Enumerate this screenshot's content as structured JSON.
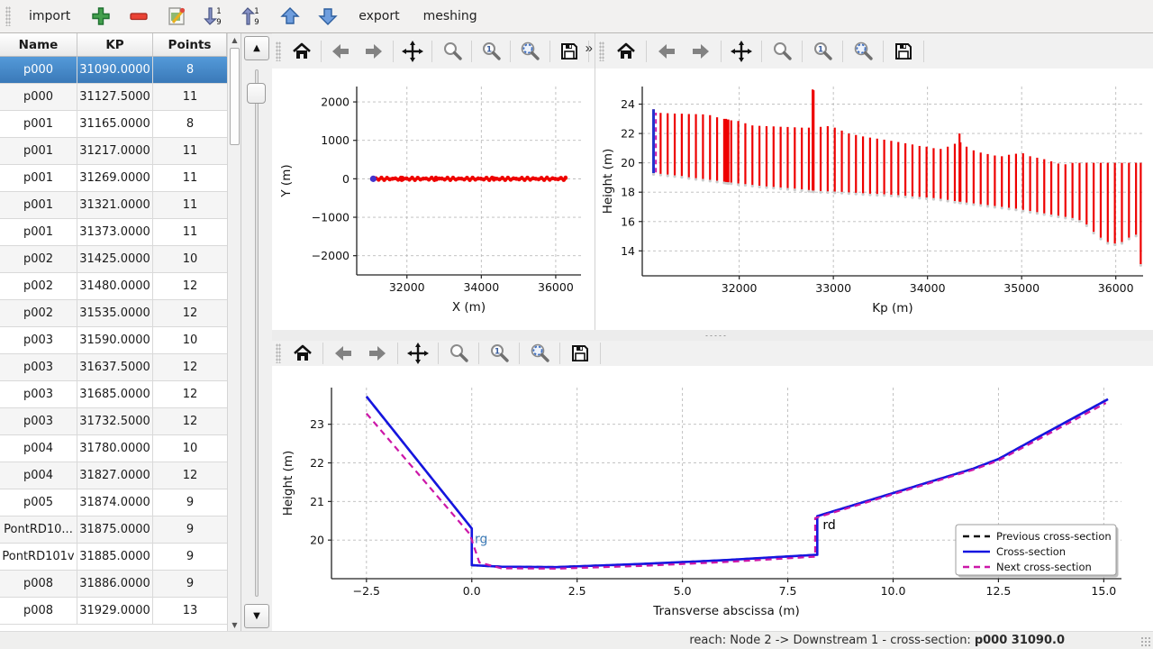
{
  "top_toolbar": {
    "items": [
      {
        "kind": "text",
        "name": "import-button",
        "label": "import"
      },
      {
        "kind": "icon",
        "name": "add-button",
        "icon": "add"
      },
      {
        "kind": "icon",
        "name": "remove-button",
        "icon": "remove"
      },
      {
        "kind": "icon",
        "name": "edit-button",
        "icon": "edit"
      },
      {
        "kind": "icon",
        "name": "sort-descending-button",
        "icon": "sort-desc"
      },
      {
        "kind": "icon",
        "name": "sort-ascending-button",
        "icon": "sort-asc"
      },
      {
        "kind": "icon",
        "name": "move-up-button",
        "icon": "up"
      },
      {
        "kind": "icon",
        "name": "move-down-button",
        "icon": "down"
      },
      {
        "kind": "text",
        "name": "export-button",
        "label": "export"
      },
      {
        "kind": "text",
        "name": "meshing-button",
        "label": "meshing"
      }
    ]
  },
  "table": {
    "columns": [
      "Name",
      "KP",
      "Points"
    ],
    "selected_index": 0,
    "rows": [
      [
        "p000",
        "31090.0000",
        "8"
      ],
      [
        "p000",
        "31127.5000",
        "11"
      ],
      [
        "p001",
        "31165.0000",
        "8"
      ],
      [
        "p001",
        "31217.0000",
        "11"
      ],
      [
        "p001",
        "31269.0000",
        "11"
      ],
      [
        "p001",
        "31321.0000",
        "11"
      ],
      [
        "p001",
        "31373.0000",
        "11"
      ],
      [
        "p002",
        "31425.0000",
        "10"
      ],
      [
        "p002",
        "31480.0000",
        "12"
      ],
      [
        "p002",
        "31535.0000",
        "12"
      ],
      [
        "p003",
        "31590.0000",
        "10"
      ],
      [
        "p003",
        "31637.5000",
        "12"
      ],
      [
        "p003",
        "31685.0000",
        "12"
      ],
      [
        "p003",
        "31732.5000",
        "12"
      ],
      [
        "p004",
        "31780.0000",
        "10"
      ],
      [
        "p004",
        "31827.0000",
        "12"
      ],
      [
        "p005",
        "31874.0000",
        "9"
      ],
      [
        "PontRD10...",
        "31875.0000",
        "9"
      ],
      [
        "PontRD101v",
        "31885.0000",
        "9"
      ],
      [
        "p008",
        "31886.0000",
        "9"
      ],
      [
        "p008",
        "31929.0000",
        "13"
      ]
    ]
  },
  "plot_toolbar": {
    "icons": [
      "home",
      "back",
      "forward",
      "pan",
      "zoom",
      "zoom-one",
      "zoom-fit",
      "save"
    ],
    "overflow_label": "»"
  },
  "status_bar": {
    "prefix": "reach: Node 2 -> Downstream 1 - cross-section:",
    "current": "p000 31090.0"
  },
  "colors": {
    "bars_red": "#ee0000",
    "cross_section_blue": "#1515e0",
    "next_magenta": "#cc17a8",
    "previous_black": "#111111",
    "reach_orange": "#ff7f0e",
    "selected_point_blue": "#4433cc",
    "grid_gray": "#bbbbbb"
  },
  "chart_data": [
    {
      "type": "scatter",
      "xlabel": "X (m)",
      "ylabel": "Y (m)",
      "xlim": [
        30650,
        36680
      ],
      "ylim": [
        -2500,
        2400
      ],
      "xticks": [
        32000,
        34000,
        36000
      ],
      "yticks": [
        -2000,
        -1000,
        0,
        1000,
        2000
      ],
      "x_decimals": 0,
      "y_decimals": 0,
      "grid": true,
      "series": [
        {
          "name": "reach-axis",
          "type": "line",
          "color": "#ff7f0e",
          "width": 3,
          "points": [
            [
              31100,
              0
            ],
            [
              36300,
              0
            ]
          ]
        },
        {
          "name": "cross-section-points",
          "type": "markers-from-bars",
          "color": "#ee0000",
          "r": 2.3,
          "jitter": 30
        },
        {
          "name": "selected-cross-section-point",
          "type": "markers",
          "color": "#4433cc",
          "r": 3.6,
          "points": [
            [
              31095,
              0
            ]
          ]
        }
      ]
    },
    {
      "type": "bar-range",
      "xlabel": "Kp (m)",
      "ylabel": "Height (m)",
      "xlim": [
        30970,
        36290
      ],
      "ylim": [
        12.3,
        25.2
      ],
      "xticks": [
        32000,
        33000,
        34000,
        35000,
        36000
      ],
      "yticks": [
        14,
        16,
        18,
        20,
        22,
        24
      ],
      "x_decimals": 0,
      "y_decimals": 0,
      "grid": true,
      "bar_color": "#ee0000",
      "bars": [
        [
          31090,
          19.3,
          23.65
        ],
        [
          31165,
          19.25,
          23.4
        ],
        [
          31240,
          19.2,
          23.38
        ],
        [
          31315,
          19.15,
          23.36
        ],
        [
          31390,
          19.1,
          23.35
        ],
        [
          31465,
          19.02,
          23.33
        ],
        [
          31540,
          18.96,
          23.32
        ],
        [
          31615,
          18.9,
          23.3
        ],
        [
          31690,
          18.84,
          23.25
        ],
        [
          31765,
          18.78,
          23.1
        ],
        [
          31840,
          18.72,
          23.0
        ],
        [
          31860,
          18.7,
          23.0
        ],
        [
          31875,
          18.69,
          22.95
        ],
        [
          31885,
          18.68,
          22.95
        ],
        [
          31915,
          18.66,
          22.9
        ],
        [
          31990,
          18.6,
          22.85
        ],
        [
          32065,
          18.55,
          22.7
        ],
        [
          32140,
          18.5,
          22.55
        ],
        [
          32215,
          18.44,
          22.52
        ],
        [
          32290,
          18.4,
          22.5
        ],
        [
          32365,
          18.36,
          22.48
        ],
        [
          32440,
          18.32,
          22.46
        ],
        [
          32515,
          18.28,
          22.44
        ],
        [
          32590,
          18.24,
          22.42
        ],
        [
          32665,
          18.2,
          22.4
        ],
        [
          32740,
          18.15,
          22.4
        ],
        [
          32780,
          18.12,
          25.0
        ],
        [
          32790,
          18.11,
          24.95
        ],
        [
          32865,
          18.08,
          22.45
        ],
        [
          32940,
          18.06,
          22.5
        ],
        [
          33015,
          18.04,
          22.4
        ],
        [
          33090,
          18.02,
          22.2
        ],
        [
          33165,
          17.99,
          22.0
        ],
        [
          33240,
          17.96,
          21.9
        ],
        [
          33315,
          17.93,
          21.8
        ],
        [
          33390,
          17.9,
          21.72
        ],
        [
          33465,
          17.88,
          21.65
        ],
        [
          33540,
          17.86,
          21.58
        ],
        [
          33615,
          17.83,
          21.5
        ],
        [
          33690,
          17.8,
          21.42
        ],
        [
          33765,
          17.76,
          21.33
        ],
        [
          33840,
          17.72,
          21.25
        ],
        [
          33915,
          17.68,
          21.15
        ],
        [
          33990,
          17.64,
          21.1
        ],
        [
          34065,
          17.6,
          21.0
        ],
        [
          34140,
          17.55,
          20.95
        ],
        [
          34215,
          17.48,
          21.1
        ],
        [
          34290,
          17.4,
          21.3
        ],
        [
          34340,
          17.36,
          22.0
        ],
        [
          34350,
          17.35,
          21.4
        ],
        [
          34415,
          17.3,
          21.1
        ],
        [
          34490,
          17.24,
          20.85
        ],
        [
          34565,
          17.18,
          20.7
        ],
        [
          34640,
          17.12,
          20.6
        ],
        [
          34715,
          17.06,
          20.5
        ],
        [
          34790,
          17.0,
          20.45
        ],
        [
          34865,
          16.94,
          20.55
        ],
        [
          34940,
          16.88,
          20.62
        ],
        [
          35015,
          16.8,
          20.65
        ],
        [
          35090,
          16.72,
          20.45
        ],
        [
          35165,
          16.64,
          20.35
        ],
        [
          35240,
          16.56,
          20.25
        ],
        [
          35315,
          16.48,
          20.1
        ],
        [
          35390,
          16.4,
          19.95
        ],
        [
          35465,
          16.32,
          19.9
        ],
        [
          35540,
          16.24,
          20.0
        ],
        [
          35615,
          16.1,
          20.0
        ],
        [
          35690,
          15.8,
          20.0
        ],
        [
          35765,
          15.3,
          20.0
        ],
        [
          35840,
          14.9,
          20.0
        ],
        [
          35915,
          14.6,
          20.0
        ],
        [
          35990,
          14.5,
          20.0
        ],
        [
          36065,
          14.6,
          20.0
        ],
        [
          36140,
          14.9,
          20.0
        ],
        [
          36215,
          15.1,
          20.0
        ],
        [
          36265,
          13.1,
          20.0
        ]
      ],
      "series": [
        {
          "name": "bottom-markers",
          "type": "markers-bottom",
          "color": "#cccccc",
          "r": 1.6
        },
        {
          "name": "all-cross-sections",
          "type": "vlines",
          "color": "#ee0000",
          "width": 2.2
        },
        {
          "name": "selected-cross-section",
          "type": "vline",
          "x": 31090,
          "y0": 19.3,
          "y1": 23.65,
          "color": "#2233cc",
          "width": 3
        },
        {
          "name": "next-cross-section-marker",
          "type": "vline",
          "x": 31115,
          "y0": 19.35,
          "y1": 23.42,
          "color": "#cc17a8",
          "width": 2,
          "dash": "5 4"
        }
      ]
    },
    {
      "type": "line",
      "xlabel": "Transverse abscissa (m)",
      "ylabel": "Height (m)",
      "xlim": [
        -3.33,
        15.42
      ],
      "ylim": [
        19.0,
        23.95
      ],
      "xticks": [
        -2.5,
        0.0,
        2.5,
        5.0,
        7.5,
        10.0,
        12.5,
        15.0
      ],
      "yticks": [
        20,
        21,
        22,
        23
      ],
      "x_decimals": 1,
      "y_decimals": 0,
      "grid": true,
      "series": [
        {
          "name": "previous-cross-section",
          "type": "line",
          "color": "#111111",
          "width": 2.4,
          "dash": "7 5",
          "points": [
            [
              -2.5,
              23.72
            ],
            [
              0,
              20.3
            ],
            [
              0,
              19.35
            ],
            [
              0.7,
              19.31
            ],
            [
              2.0,
              19.3
            ],
            [
              4.0,
              19.38
            ],
            [
              6.0,
              19.48
            ],
            [
              8.2,
              19.62
            ],
            [
              8.2,
              20.62
            ],
            [
              11.9,
              21.85
            ],
            [
              12.5,
              22.1
            ],
            [
              13.5,
              22.7
            ],
            [
              15.1,
              23.65
            ]
          ]
        },
        {
          "name": "cross-section",
          "type": "line",
          "color": "#1515e0",
          "width": 2.6,
          "points": [
            [
              -2.5,
              23.72
            ],
            [
              0,
              20.3
            ],
            [
              0,
              19.35
            ],
            [
              0.7,
              19.31
            ],
            [
              2.0,
              19.3
            ],
            [
              4.0,
              19.38
            ],
            [
              6.0,
              19.48
            ],
            [
              8.2,
              19.62
            ],
            [
              8.2,
              20.62
            ],
            [
              11.9,
              21.85
            ],
            [
              12.5,
              22.1
            ],
            [
              13.5,
              22.7
            ],
            [
              15.1,
              23.65
            ]
          ]
        },
        {
          "name": "next-cross-section",
          "type": "line",
          "color": "#cc17a8",
          "width": 2.2,
          "dash": "7 5",
          "points": [
            [
              -2.5,
              23.28
            ],
            [
              -0.05,
              20.16
            ],
            [
              0.18,
              19.42
            ],
            [
              0.7,
              19.27
            ],
            [
              2.0,
              19.26
            ],
            [
              4.0,
              19.33
            ],
            [
              6.0,
              19.43
            ],
            [
              8.15,
              19.57
            ],
            [
              8.15,
              20.57
            ],
            [
              11.9,
              21.82
            ],
            [
              12.5,
              22.06
            ],
            [
              13.5,
              22.64
            ],
            [
              15.05,
              23.55
            ]
          ]
        }
      ],
      "annotations": [
        {
          "text": "rg",
          "x": 0.07,
          "y": 19.92,
          "color": "#3d7ab5",
          "size": 14
        },
        {
          "text": "rd",
          "x": 8.33,
          "y": 20.28,
          "color": "#000000",
          "size": 14
        }
      ],
      "legend": {
        "entries": [
          {
            "label": "Previous cross-section",
            "color": "#111111",
            "dash": true
          },
          {
            "label": "Cross-section",
            "color": "#1515e0",
            "dash": false
          },
          {
            "label": "Next cross-section",
            "color": "#cc17a8",
            "dash": true
          }
        ]
      }
    }
  ]
}
